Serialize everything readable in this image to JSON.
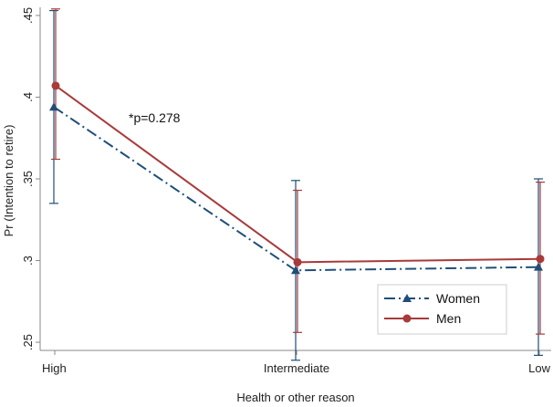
{
  "chart_data": {
    "type": "line",
    "categories": [
      "High",
      "Intermediate",
      "Low"
    ],
    "xlabel": "Health or other reason",
    "ylabel": "Pr (Intention to retire)",
    "ylim": [
      0.245,
      0.455
    ],
    "yticks": [
      0.25,
      0.3,
      0.35,
      0.4,
      0.45
    ],
    "ytick_labels": [
      ".25",
      ".3",
      ".35",
      ".4",
      ".45"
    ],
    "grid": false,
    "legend_position": "bottom-right",
    "annotation": "*p=0.278",
    "series": [
      {
        "name": "Women",
        "color": "#1f4e79",
        "marker": "triangle",
        "line_style": "dash-dot",
        "values": [
          0.394,
          0.294,
          0.296
        ],
        "ci_low": [
          0.335,
          0.239,
          0.242
        ],
        "ci_high": [
          0.453,
          0.349,
          0.35
        ]
      },
      {
        "name": "Men",
        "color": "#a83a3a",
        "marker": "circle",
        "line_style": "solid",
        "values": [
          0.407,
          0.299,
          0.301
        ],
        "ci_low": [
          0.362,
          0.256,
          0.255
        ],
        "ci_high": [
          0.454,
          0.343,
          0.348
        ]
      }
    ]
  }
}
